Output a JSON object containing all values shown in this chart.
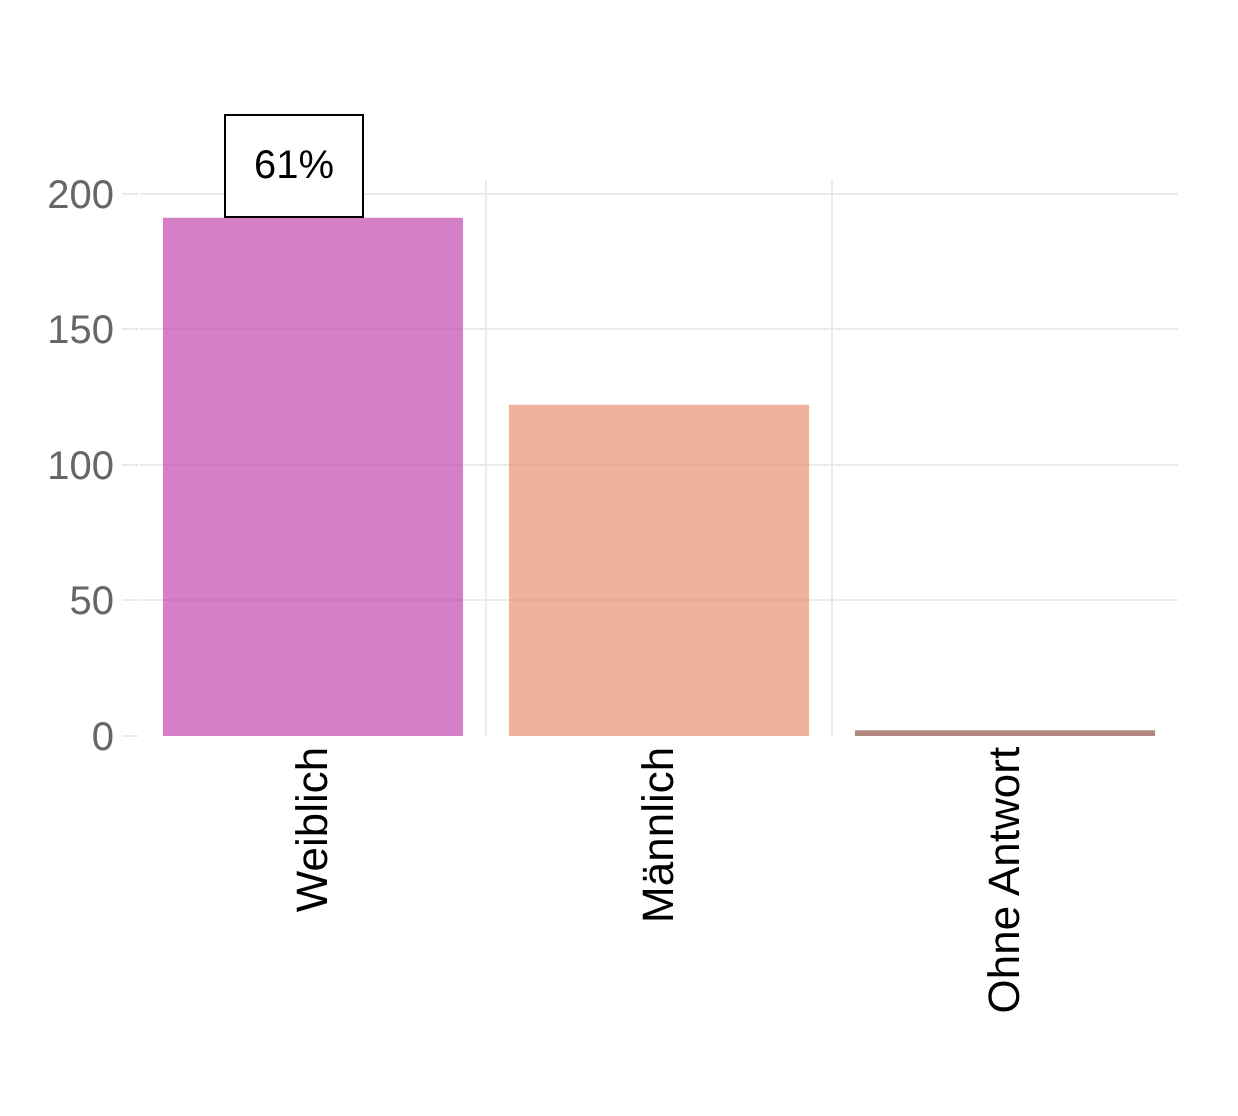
{
  "chart_data": {
    "type": "bar",
    "categories": [
      "Weiblich",
      "Männlich",
      "Ohne Antwort"
    ],
    "values": [
      190,
      121,
      1
    ],
    "colors": [
      "#c03caa",
      "#e8896a",
      "#8b4a3c"
    ],
    "ylim": [
      0,
      205
    ],
    "yticks": [
      0,
      50,
      100,
      150,
      200
    ],
    "grid": true,
    "annotations": [
      "61%"
    ]
  }
}
